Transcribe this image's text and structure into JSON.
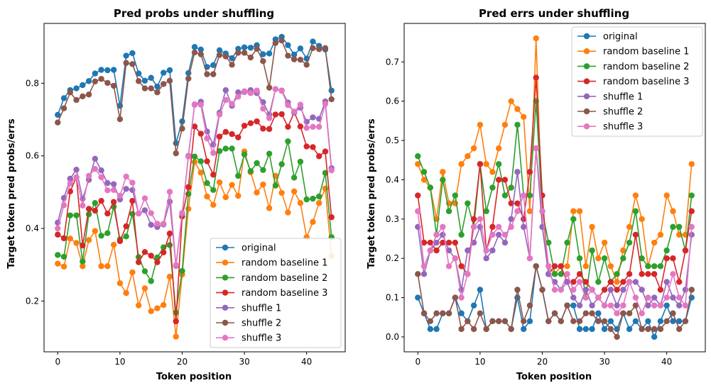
{
  "chart_data": [
    {
      "type": "line",
      "title": "Pred probs under shuffling",
      "xlabel": "Token position",
      "ylabel": "Target token pred probs/errs",
      "xlim": [
        -2.2,
        46.2
      ],
      "ylim": [
        0.06,
        0.965
      ],
      "xticks": [
        0,
        10,
        20,
        30,
        40
      ],
      "yticks": [
        0.2,
        0.4,
        0.6,
        0.8
      ],
      "ytick_labels": [
        "0.2",
        "0.4",
        "0.6",
        "0.8"
      ],
      "legend_position": "lower right",
      "grid": false,
      "x": [
        0,
        1,
        2,
        3,
        4,
        5,
        6,
        7,
        8,
        9,
        10,
        11,
        12,
        13,
        14,
        15,
        16,
        17,
        18,
        19,
        20,
        21,
        22,
        23,
        24,
        25,
        26,
        27,
        28,
        29,
        30,
        31,
        32,
        33,
        34,
        35,
        36,
        37,
        38,
        39,
        40,
        41,
        42,
        43,
        44
      ],
      "series": [
        {
          "name": "original",
          "color": "#1f77b4",
          "values": [
            0.713,
            0.759,
            0.781,
            0.786,
            0.795,
            0.806,
            0.827,
            0.837,
            0.836,
            0.837,
            0.738,
            0.876,
            0.883,
            0.827,
            0.807,
            0.815,
            0.791,
            0.829,
            0.836,
            0.635,
            0.695,
            0.828,
            0.9,
            0.893,
            0.845,
            0.85,
            0.891,
            0.882,
            0.869,
            0.895,
            0.899,
            0.898,
            0.905,
            0.88,
            0.882,
            0.921,
            0.928,
            0.905,
            0.879,
            0.896,
            0.868,
            0.915,
            0.903,
            0.893,
            0.78
          ]
        },
        {
          "name": "random baseline 1",
          "color": "#ff7f0e",
          "values": [
            0.303,
            0.295,
            0.372,
            0.36,
            0.296,
            0.368,
            0.393,
            0.296,
            0.296,
            0.355,
            0.249,
            0.222,
            0.279,
            0.188,
            0.235,
            0.172,
            0.18,
            0.189,
            0.267,
            0.102,
            0.273,
            0.454,
            0.583,
            0.554,
            0.488,
            0.465,
            0.527,
            0.486,
            0.52,
            0.49,
            0.612,
            0.555,
            0.499,
            0.521,
            0.456,
            0.545,
            0.498,
            0.444,
            0.502,
            0.47,
            0.376,
            0.418,
            0.47,
            0.51,
            0.324
          ]
        },
        {
          "name": "random baseline 2",
          "color": "#2ca02c",
          "values": [
            0.327,
            0.322,
            0.436,
            0.436,
            0.309,
            0.439,
            0.47,
            0.38,
            0.387,
            0.46,
            0.37,
            0.378,
            0.44,
            0.321,
            0.282,
            0.255,
            0.32,
            0.348,
            0.354,
            0.168,
            0.283,
            0.495,
            0.598,
            0.585,
            0.525,
            0.506,
            0.613,
            0.62,
            0.62,
            0.545,
            0.604,
            0.558,
            0.58,
            0.561,
            0.606,
            0.518,
            0.577,
            0.64,
            0.54,
            0.584,
            0.48,
            0.482,
            0.488,
            0.553,
            0.376
          ]
        },
        {
          "name": "random baseline 3",
          "color": "#d62728",
          "values": [
            0.383,
            0.373,
            0.502,
            0.541,
            0.353,
            0.454,
            0.449,
            0.476,
            0.441,
            0.473,
            0.365,
            0.406,
            0.476,
            0.307,
            0.335,
            0.325,
            0.307,
            0.334,
            0.386,
            0.144,
            0.433,
            0.514,
            0.681,
            0.661,
            0.585,
            0.548,
            0.653,
            0.666,
            0.66,
            0.651,
            0.683,
            0.69,
            0.695,
            0.675,
            0.674,
            0.714,
            0.715,
            0.68,
            0.72,
            0.681,
            0.626,
            0.624,
            0.599,
            0.612,
            0.431
          ]
        },
        {
          "name": "shuffle 1",
          "color": "#9467bd",
          "values": [
            0.416,
            0.484,
            0.537,
            0.562,
            0.482,
            0.534,
            0.592,
            0.56,
            0.525,
            0.522,
            0.48,
            0.509,
            0.506,
            0.441,
            0.45,
            0.41,
            0.404,
            0.411,
            0.474,
            0.297,
            0.44,
            0.6,
            0.741,
            0.749,
            0.667,
            0.631,
            0.719,
            0.781,
            0.738,
            0.775,
            0.776,
            0.781,
            0.773,
            0.748,
            0.714,
            0.784,
            0.78,
            0.747,
            0.719,
            0.733,
            0.694,
            0.706,
            0.702,
            0.75,
            0.566
          ]
        },
        {
          "name": "shuffle 2",
          "color": "#8c564b",
          "values": [
            0.692,
            0.731,
            0.775,
            0.754,
            0.764,
            0.769,
            0.805,
            0.812,
            0.801,
            0.793,
            0.701,
            0.856,
            0.853,
            0.806,
            0.786,
            0.786,
            0.775,
            0.798,
            0.807,
            0.607,
            0.675,
            0.813,
            0.885,
            0.88,
            0.825,
            0.825,
            0.878,
            0.874,
            0.851,
            0.884,
            0.884,
            0.871,
            0.895,
            0.861,
            0.788,
            0.911,
            0.918,
            0.876,
            0.866,
            0.865,
            0.851,
            0.897,
            0.894,
            0.897,
            0.756
          ]
        },
        {
          "name": "shuffle 3",
          "color": "#e377c2",
          "values": [
            0.4,
            0.464,
            0.524,
            0.541,
            0.463,
            0.545,
            0.564,
            0.541,
            0.505,
            0.506,
            0.49,
            0.543,
            0.526,
            0.441,
            0.483,
            0.442,
            0.413,
            0.413,
            0.501,
            0.299,
            0.443,
            0.598,
            0.742,
            0.741,
            0.648,
            0.608,
            0.714,
            0.754,
            0.743,
            0.763,
            0.778,
            0.773,
            0.78,
            0.73,
            0.704,
            0.784,
            0.779,
            0.74,
            0.722,
            0.741,
            0.677,
            0.68,
            0.68,
            0.743,
            0.56
          ]
        }
      ]
    },
    {
      "type": "line",
      "title": "Pred errs under shuffling",
      "xlabel": "Token position",
      "ylabel": "Target token pred probs/errs",
      "xlim": [
        -2.2,
        46.2
      ],
      "ylim": [
        -0.038,
        0.798
      ],
      "xticks": [
        0,
        10,
        20,
        30,
        40
      ],
      "yticks": [
        0.0,
        0.1,
        0.2,
        0.3,
        0.4,
        0.5,
        0.6,
        0.7
      ],
      "ytick_labels": [
        "0.0",
        "0.1",
        "0.2",
        "0.3",
        "0.4",
        "0.5",
        "0.6",
        "0.7"
      ],
      "legend_position": "upper right",
      "grid": false,
      "x": [
        0,
        1,
        2,
        3,
        4,
        5,
        6,
        7,
        8,
        9,
        10,
        11,
        12,
        13,
        14,
        15,
        16,
        17,
        18,
        19,
        20,
        21,
        22,
        23,
        24,
        25,
        26,
        27,
        28,
        29,
        30,
        31,
        32,
        33,
        34,
        35,
        36,
        37,
        38,
        39,
        40,
        41,
        42,
        43,
        44
      ],
      "series": [
        {
          "name": "original",
          "color": "#1f77b4",
          "values": [
            0.1,
            0.06,
            0.02,
            0.02,
            0.06,
            0.06,
            0.1,
            0.06,
            0.04,
            0.08,
            0.12,
            0.02,
            0.04,
            0.04,
            0.04,
            0.02,
            0.1,
            0.02,
            0.04,
            0.18,
            0.12,
            0.04,
            0.06,
            0.04,
            0.08,
            0.08,
            0.02,
            0.02,
            0.02,
            0.06,
            0.02,
            0.04,
            0.02,
            0.06,
            0.02,
            0.04,
            0.02,
            0.04,
            0.0,
            0.04,
            0.08,
            0.04,
            0.04,
            0.04,
            0.1
          ]
        },
        {
          "name": "random baseline 1",
          "color": "#ff7f0e",
          "values": [
            0.44,
            0.4,
            0.38,
            0.3,
            0.42,
            0.34,
            0.34,
            0.44,
            0.46,
            0.48,
            0.54,
            0.44,
            0.42,
            0.48,
            0.54,
            0.6,
            0.58,
            0.56,
            0.32,
            0.76,
            0.28,
            0.18,
            0.16,
            0.18,
            0.18,
            0.32,
            0.32,
            0.18,
            0.28,
            0.2,
            0.24,
            0.18,
            0.14,
            0.22,
            0.28,
            0.36,
            0.3,
            0.18,
            0.24,
            0.26,
            0.36,
            0.32,
            0.26,
            0.26,
            0.44
          ]
        },
        {
          "name": "random baseline 2",
          "color": "#2ca02c",
          "values": [
            0.46,
            0.42,
            0.38,
            0.26,
            0.4,
            0.32,
            0.36,
            0.26,
            0.34,
            0.28,
            0.44,
            0.32,
            0.38,
            0.44,
            0.36,
            0.38,
            0.54,
            0.36,
            0.36,
            0.6,
            0.32,
            0.24,
            0.16,
            0.16,
            0.24,
            0.3,
            0.2,
            0.1,
            0.22,
            0.14,
            0.2,
            0.14,
            0.16,
            0.2,
            0.24,
            0.32,
            0.2,
            0.18,
            0.18,
            0.18,
            0.22,
            0.28,
            0.28,
            0.22,
            0.36
          ]
        },
        {
          "name": "random baseline 3",
          "color": "#d62728",
          "values": [
            0.36,
            0.24,
            0.24,
            0.22,
            0.24,
            0.24,
            0.24,
            0.18,
            0.16,
            0.3,
            0.44,
            0.22,
            0.28,
            0.4,
            0.4,
            0.34,
            0.34,
            0.3,
            0.42,
            0.66,
            0.36,
            0.16,
            0.18,
            0.18,
            0.14,
            0.14,
            0.16,
            0.14,
            0.12,
            0.1,
            0.12,
            0.14,
            0.12,
            0.14,
            0.16,
            0.26,
            0.16,
            0.16,
            0.16,
            0.12,
            0.2,
            0.2,
            0.14,
            0.22,
            0.32
          ]
        },
        {
          "name": "shuffle 1",
          "color": "#9467bd",
          "values": [
            0.28,
            0.16,
            0.22,
            0.24,
            0.26,
            0.22,
            0.2,
            0.12,
            0.22,
            0.24,
            0.28,
            0.2,
            0.22,
            0.26,
            0.24,
            0.3,
            0.42,
            0.28,
            0.2,
            0.48,
            0.28,
            0.16,
            0.14,
            0.12,
            0.14,
            0.1,
            0.08,
            0.12,
            0.08,
            0.1,
            0.08,
            0.12,
            0.08,
            0.12,
            0.14,
            0.14,
            0.12,
            0.08,
            0.1,
            0.08,
            0.14,
            0.1,
            0.08,
            0.12,
            0.26
          ]
        },
        {
          "name": "shuffle 2",
          "color": "#8c564b",
          "values": [
            0.16,
            0.06,
            0.04,
            0.06,
            0.06,
            0.06,
            0.1,
            0.02,
            0.04,
            0.02,
            0.06,
            0.02,
            0.04,
            0.04,
            0.04,
            0.02,
            0.12,
            0.04,
            0.08,
            0.18,
            0.12,
            0.04,
            0.06,
            0.04,
            0.08,
            0.04,
            0.04,
            0.06,
            0.06,
            0.04,
            0.04,
            0.02,
            0.0,
            0.06,
            0.06,
            0.08,
            0.02,
            0.02,
            0.02,
            0.02,
            0.04,
            0.06,
            0.02,
            0.04,
            0.12
          ]
        },
        {
          "name": "shuffle 3",
          "color": "#e377c2",
          "values": [
            0.32,
            0.18,
            0.22,
            0.26,
            0.28,
            0.18,
            0.2,
            0.1,
            0.16,
            0.28,
            0.3,
            0.22,
            0.26,
            0.28,
            0.26,
            0.28,
            0.32,
            0.36,
            0.2,
            0.48,
            0.32,
            0.18,
            0.12,
            0.12,
            0.16,
            0.12,
            0.14,
            0.1,
            0.12,
            0.1,
            0.08,
            0.08,
            0.06,
            0.08,
            0.14,
            0.1,
            0.06,
            0.1,
            0.08,
            0.08,
            0.1,
            0.16,
            0.1,
            0.08,
            0.28
          ]
        }
      ]
    }
  ]
}
